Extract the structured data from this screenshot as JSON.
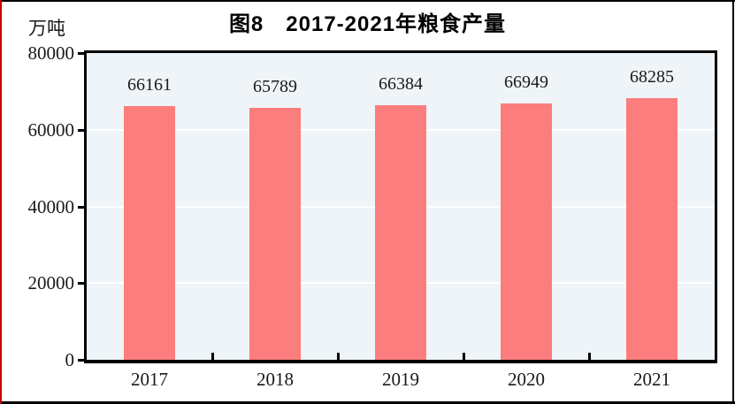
{
  "page": {
    "left_rule_color": "#c00000",
    "frame_color": "#000000"
  },
  "chart_data": {
    "type": "bar",
    "title": "图8　2017-2021年粮食产量",
    "unit_label": "万吨",
    "categories": [
      "2017",
      "2018",
      "2019",
      "2020",
      "2021"
    ],
    "values": [
      66161,
      65789,
      66384,
      66949,
      68285
    ],
    "value_labels": [
      "66161",
      "65789",
      "66384",
      "66949",
      "68285"
    ],
    "xlabel": "",
    "ylabel": "万吨",
    "ylim": [
      0,
      80000
    ],
    "yticks": [
      0,
      20000,
      40000,
      60000,
      80000
    ],
    "ytick_labels": [
      "0",
      "20000",
      "40000",
      "60000",
      "80000"
    ],
    "grid": true,
    "legend": "none",
    "bar_color": "#FC7D7D",
    "plot_bg_color": "#EEF4F8",
    "gridline_color": "#FFFFFF"
  }
}
